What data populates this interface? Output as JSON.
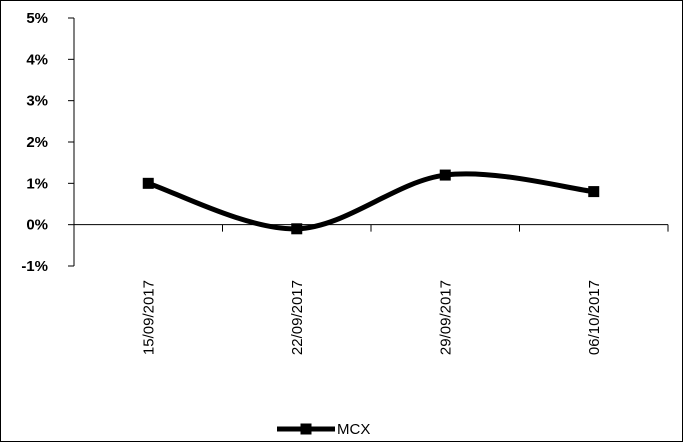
{
  "chart_data": {
    "type": "line",
    "title": "",
    "xlabel": "",
    "ylabel": "",
    "categories": [
      "15/09/2017",
      "22/09/2017",
      "29/09/2017",
      "06/10/2017"
    ],
    "series": [
      {
        "name": "MCX",
        "values": [
          0.01,
          -0.001,
          0.012,
          0.008
        ],
        "color": "#000000",
        "marker": "square",
        "smooth": true
      }
    ],
    "ylim": [
      -0.01,
      0.05
    ],
    "yticks": [
      {
        "value": 0.05,
        "label": "5%"
      },
      {
        "value": 0.04,
        "label": "4%"
      },
      {
        "value": 0.03,
        "label": "3%"
      },
      {
        "value": 0.02,
        "label": "2%"
      },
      {
        "value": 0.01,
        "label": "1%"
      },
      {
        "value": 0.0,
        "label": "0%"
      },
      {
        "value": -0.01,
        "label": "-1%"
      }
    ],
    "grid": false,
    "legend_position": "bottom"
  }
}
